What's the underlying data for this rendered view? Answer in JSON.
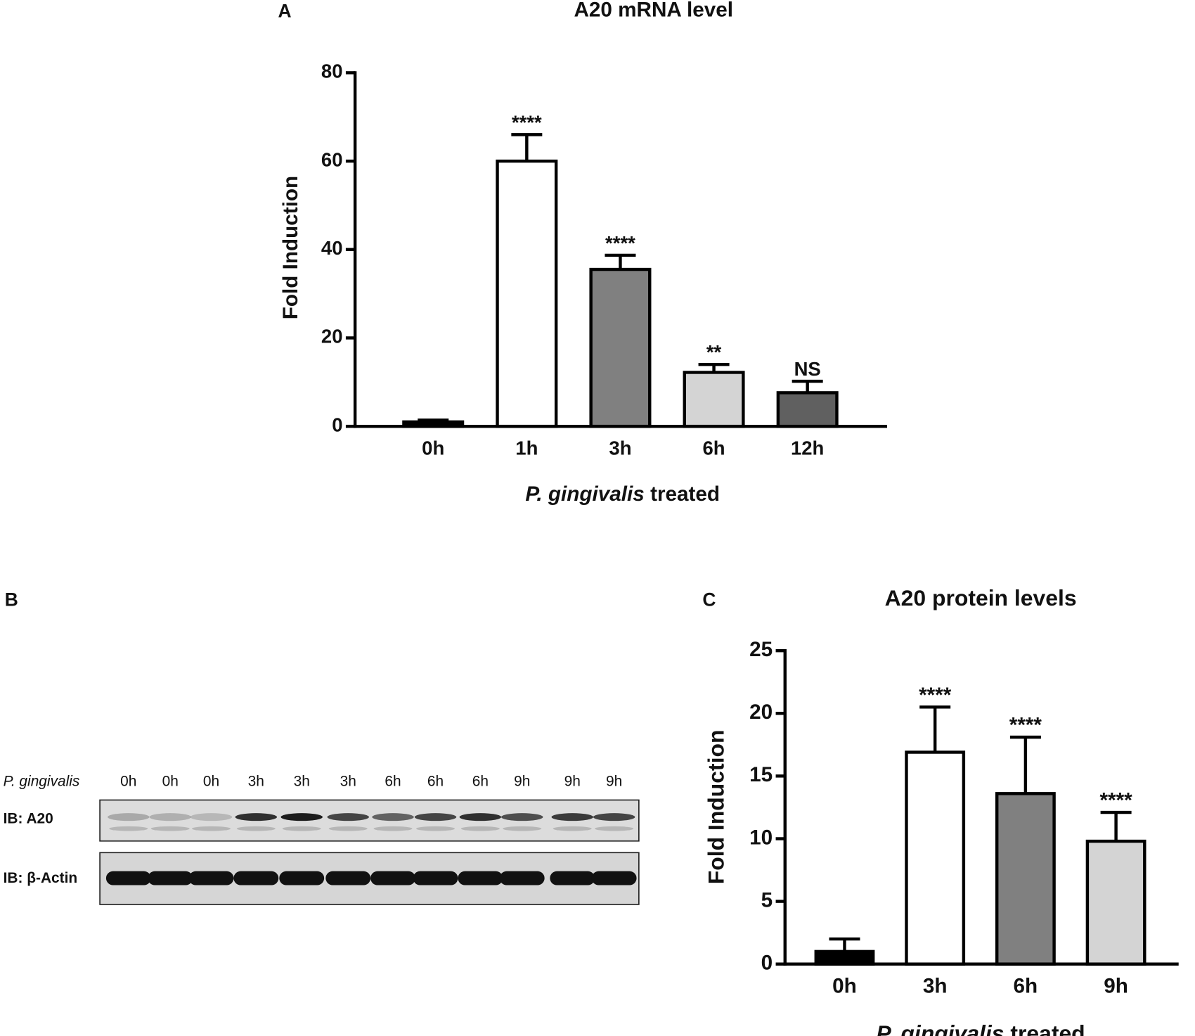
{
  "chart_data": [
    {
      "type": "bar",
      "panel_label": "A",
      "title": "A20 mRNA level",
      "categories": [
        "0h",
        "1h",
        "3h",
        "6h",
        "12h"
      ],
      "values": [
        1,
        60,
        35.5,
        12.2,
        7.6
      ],
      "errors": [
        0.4,
        6,
        3.2,
        1.8,
        2.6
      ],
      "colors": [
        "#000000",
        "#ffffff",
        "#808080",
        "#d4d4d4",
        "#606060"
      ],
      "value_annotations": [
        null,
        "****",
        "****",
        "**",
        "NS"
      ],
      "ylabel": "Fold Induction",
      "xlabel": [
        "P. gingivalis",
        " treated"
      ],
      "ylim": [
        0,
        80
      ],
      "yticks": [
        0,
        20,
        40,
        60,
        80
      ]
    },
    {
      "type": "bar",
      "panel_label": "C",
      "title": "A20 protein levels",
      "categories": [
        "0h",
        "3h",
        "6h",
        "9h"
      ],
      "values": [
        1,
        16.9,
        13.6,
        9.8
      ],
      "errors": [
        1,
        3.6,
        4.5,
        2.3
      ],
      "colors": [
        "#000000",
        "#ffffff",
        "#808080",
        "#d4d4d4"
      ],
      "value_annotations": [
        null,
        "****",
        "****",
        "****"
      ],
      "ylabel": "Fold Induction",
      "xlabel": [
        "P. gingivalis",
        " treated"
      ],
      "ylim": [
        0,
        25
      ],
      "yticks": [
        0,
        5,
        10,
        15,
        20,
        25
      ]
    }
  ],
  "blot": {
    "panel_label": "B",
    "treatment": "P. gingivalis",
    "lanes": [
      "0h",
      "0h",
      "0h",
      "3h",
      "3h",
      "3h",
      "6h",
      "6h",
      "6h",
      "9h",
      "9h",
      "9h"
    ],
    "rows": [
      "IB: A20",
      "IB: β-Actin"
    ]
  }
}
